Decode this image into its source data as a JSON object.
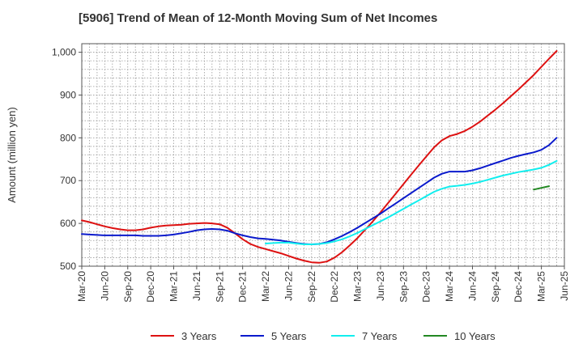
{
  "chart_data": {
    "type": "line",
    "title": "[5906]  Trend of Mean of 12-Month Moving Sum of Net Incomes",
    "xlabel": "",
    "ylabel": "Amount (million yen)",
    "ylim": [
      500,
      1020
    ],
    "yticks": [
      500,
      600,
      700,
      800,
      900,
      1000
    ],
    "ytick_labels": [
      "500",
      "600",
      "700",
      "800",
      "900",
      "1,000"
    ],
    "xlim": [
      "Mar-20",
      "Jun-25"
    ],
    "xtick_labels": [
      "Mar-20",
      "Jun-20",
      "Sep-20",
      "Dec-20",
      "Mar-21",
      "Jun-21",
      "Sep-21",
      "Dec-21",
      "Mar-22",
      "Jun-22",
      "Sep-22",
      "Dec-22",
      "Mar-23",
      "Jun-23",
      "Sep-23",
      "Dec-23",
      "Mar-24",
      "Jun-24",
      "Sep-24",
      "Dec-24",
      "Mar-25",
      "Jun-25"
    ],
    "grid": true,
    "legend_position": "bottom",
    "series": [
      {
        "name": "3 Years",
        "color": "#dd1111",
        "points": [
          [
            "Mar-20",
            607
          ],
          [
            "Apr-20",
            603
          ],
          [
            "May-20",
            598
          ],
          [
            "Jun-20",
            593
          ],
          [
            "Jul-20",
            589
          ],
          [
            "Aug-20",
            586
          ],
          [
            "Sep-20",
            584
          ],
          [
            "Oct-20",
            584
          ],
          [
            "Nov-20",
            586
          ],
          [
            "Dec-20",
            590
          ],
          [
            "Jan-21",
            593
          ],
          [
            "Feb-21",
            595
          ],
          [
            "Mar-21",
            596
          ],
          [
            "Apr-21",
            597
          ],
          [
            "May-21",
            599
          ],
          [
            "Jun-21",
            600
          ],
          [
            "Jul-21",
            601
          ],
          [
            "Aug-21",
            600
          ],
          [
            "Sep-21",
            598
          ],
          [
            "Oct-21",
            590
          ],
          [
            "Nov-21",
            577
          ],
          [
            "Dec-21",
            563
          ],
          [
            "Jan-22",
            552
          ],
          [
            "Feb-22",
            545
          ],
          [
            "Mar-22",
            540
          ],
          [
            "Apr-22",
            535
          ],
          [
            "May-22",
            530
          ],
          [
            "Jun-22",
            524
          ],
          [
            "Jul-22",
            518
          ],
          [
            "Aug-22",
            513
          ],
          [
            "Sep-22",
            509
          ],
          [
            "Oct-22",
            508
          ],
          [
            "Nov-22",
            511
          ],
          [
            "Dec-22",
            520
          ],
          [
            "Jan-23",
            533
          ],
          [
            "Feb-23",
            549
          ],
          [
            "Mar-23",
            566
          ],
          [
            "Apr-23",
            585
          ],
          [
            "May-23",
            605
          ],
          [
            "Jun-23",
            626
          ],
          [
            "Jul-23",
            648
          ],
          [
            "Aug-23",
            670
          ],
          [
            "Sep-23",
            692
          ],
          [
            "Oct-23",
            714
          ],
          [
            "Nov-23",
            736
          ],
          [
            "Dec-23",
            757
          ],
          [
            "Jan-24",
            778
          ],
          [
            "Feb-24",
            794
          ],
          [
            "Mar-24",
            804
          ],
          [
            "Apr-24",
            809
          ],
          [
            "May-24",
            816
          ],
          [
            "Jun-24",
            826
          ],
          [
            "Jul-24",
            838
          ],
          [
            "Aug-24",
            852
          ],
          [
            "Sep-24",
            866
          ],
          [
            "Oct-24",
            881
          ],
          [
            "Nov-24",
            897
          ],
          [
            "Dec-24",
            913
          ],
          [
            "Jan-25",
            930
          ],
          [
            "Feb-25",
            947
          ],
          [
            "Mar-25",
            966
          ],
          [
            "Apr-25",
            985
          ],
          [
            "May-25",
            1003
          ]
        ]
      },
      {
        "name": "5 Years",
        "color": "#0a1acc",
        "points": [
          [
            "Mar-20",
            575
          ],
          [
            "Apr-20",
            574
          ],
          [
            "May-20",
            573
          ],
          [
            "Jun-20",
            572
          ],
          [
            "Jul-20",
            572
          ],
          [
            "Aug-20",
            572
          ],
          [
            "Sep-20",
            572
          ],
          [
            "Oct-20",
            572
          ],
          [
            "Nov-20",
            571
          ],
          [
            "Dec-20",
            571
          ],
          [
            "Jan-21",
            571
          ],
          [
            "Feb-21",
            572
          ],
          [
            "Mar-21",
            574
          ],
          [
            "Apr-21",
            577
          ],
          [
            "May-21",
            580
          ],
          [
            "Jun-21",
            584
          ],
          [
            "Jul-21",
            586
          ],
          [
            "Aug-21",
            587
          ],
          [
            "Sep-21",
            586
          ],
          [
            "Oct-21",
            583
          ],
          [
            "Nov-21",
            577
          ],
          [
            "Dec-21",
            572
          ],
          [
            "Jan-22",
            568
          ],
          [
            "Feb-22",
            565
          ],
          [
            "Mar-22",
            564
          ],
          [
            "Apr-22",
            562
          ],
          [
            "May-22",
            560
          ],
          [
            "Jun-22",
            557
          ],
          [
            "Jul-22",
            554
          ],
          [
            "Aug-22",
            552
          ],
          [
            "Sep-22",
            551
          ],
          [
            "Oct-22",
            552
          ],
          [
            "Nov-22",
            556
          ],
          [
            "Dec-22",
            563
          ],
          [
            "Jan-23",
            571
          ],
          [
            "Feb-23",
            580
          ],
          [
            "Mar-23",
            590
          ],
          [
            "Apr-23",
            601
          ],
          [
            "May-23",
            612
          ],
          [
            "Jun-23",
            623
          ],
          [
            "Jul-23",
            635
          ],
          [
            "Aug-23",
            647
          ],
          [
            "Sep-23",
            659
          ],
          [
            "Oct-23",
            671
          ],
          [
            "Nov-23",
            683
          ],
          [
            "Dec-23",
            695
          ],
          [
            "Jan-24",
            707
          ],
          [
            "Feb-24",
            716
          ],
          [
            "Mar-24",
            721
          ],
          [
            "Apr-24",
            721
          ],
          [
            "May-24",
            721
          ],
          [
            "Jun-24",
            724
          ],
          [
            "Jul-24",
            729
          ],
          [
            "Aug-24",
            735
          ],
          [
            "Sep-24",
            741
          ],
          [
            "Oct-24",
            747
          ],
          [
            "Nov-24",
            753
          ],
          [
            "Dec-24",
            758
          ],
          [
            "Jan-25",
            762
          ],
          [
            "Feb-25",
            766
          ],
          [
            "Mar-25",
            772
          ],
          [
            "Apr-25",
            783
          ],
          [
            "May-25",
            800
          ]
        ]
      },
      {
        "name": "7 Years",
        "color": "#11eeee",
        "points": [
          [
            "Mar-22",
            553
          ],
          [
            "Apr-22",
            554
          ],
          [
            "May-22",
            555
          ],
          [
            "Jun-22",
            555
          ],
          [
            "Jul-22",
            553
          ],
          [
            "Aug-22",
            551
          ],
          [
            "Sep-22",
            551
          ],
          [
            "Oct-22",
            552
          ],
          [
            "Nov-22",
            554
          ],
          [
            "Dec-22",
            558
          ],
          [
            "Jan-23",
            563
          ],
          [
            "Feb-23",
            570
          ],
          [
            "Mar-23",
            578
          ],
          [
            "Apr-23",
            587
          ],
          [
            "May-23",
            596
          ],
          [
            "Jun-23",
            605
          ],
          [
            "Jul-23",
            614
          ],
          [
            "Aug-23",
            624
          ],
          [
            "Sep-23",
            634
          ],
          [
            "Oct-23",
            644
          ],
          [
            "Nov-23",
            654
          ],
          [
            "Dec-23",
            664
          ],
          [
            "Jan-24",
            674
          ],
          [
            "Feb-24",
            681
          ],
          [
            "Mar-24",
            686
          ],
          [
            "Apr-24",
            688
          ],
          [
            "May-24",
            690
          ],
          [
            "Jun-24",
            693
          ],
          [
            "Jul-24",
            697
          ],
          [
            "Aug-24",
            702
          ],
          [
            "Sep-24",
            707
          ],
          [
            "Oct-24",
            712
          ],
          [
            "Nov-24",
            716
          ],
          [
            "Dec-24",
            720
          ],
          [
            "Jan-25",
            723
          ],
          [
            "Feb-25",
            726
          ],
          [
            "Mar-25",
            730
          ],
          [
            "Apr-25",
            737
          ],
          [
            "May-25",
            746
          ]
        ]
      },
      {
        "name": "10 Years",
        "color": "#228822",
        "points": [
          [
            "Feb-25",
            679
          ],
          [
            "Mar-25",
            683
          ],
          [
            "Apr-25",
            687
          ]
        ]
      }
    ]
  }
}
